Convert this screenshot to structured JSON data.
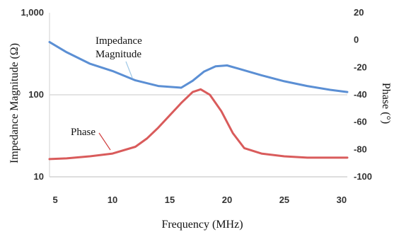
{
  "chart_data": {
    "type": "line",
    "title": "",
    "xlabel": "Frequency (MHz)",
    "ylabel_left": "Impedance Magnitude (Ω)",
    "ylabel_right": "Phase (°)",
    "xlim": [
      4.5,
      30.5
    ],
    "ylim_left": [
      10,
      1000
    ],
    "y_left_scale": "log",
    "ylim_right": [
      -100,
      20
    ],
    "grid": "horizontal at 100 Ω",
    "x_ticks": [
      "5",
      "10",
      "15",
      "20",
      "25",
      "30"
    ],
    "y_left_ticks": [
      "1,000",
      "100",
      "10"
    ],
    "y_right_ticks": [
      "20",
      "0",
      "-20",
      "-40",
      "-60",
      "-80",
      "-100"
    ],
    "series": [
      {
        "name": "Impedance\nMagnitude",
        "axis": "left",
        "color": "#5b8fd4",
        "x": [
          4.5,
          6,
          8,
          10,
          12,
          14,
          16,
          17,
          18,
          19,
          20,
          21,
          23,
          25,
          27,
          29,
          30.5
        ],
        "y": [
          440,
          330,
          240,
          195,
          150,
          128,
          122,
          148,
          192,
          222,
          228,
          208,
          173,
          146,
          128,
          115,
          108
        ]
      },
      {
        "name": "Phase",
        "axis": "right",
        "color": "#d95b5b",
        "x": [
          4.5,
          6,
          8,
          10,
          12,
          13,
          14,
          15,
          16,
          17,
          17.7,
          18.5,
          19.5,
          20.5,
          21.5,
          23,
          25,
          27,
          30.5
        ],
        "y": [
          -87,
          -86.5,
          -85,
          -83,
          -78,
          -72,
          -64,
          -55,
          -46,
          -38,
          -36,
          -40,
          -52,
          -68,
          -79,
          -83,
          -85,
          -86,
          -86
        ]
      }
    ]
  }
}
